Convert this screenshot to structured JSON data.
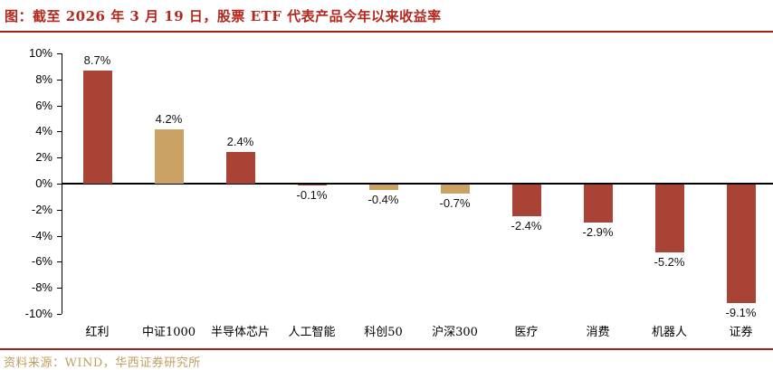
{
  "title": "图：截至 2026 年 3 月 19 日，股票 ETF 代表产品今年以来收益率",
  "source_note": "资料来源：WIND，华西证券研究所",
  "colors": {
    "title_red": "#B3271D",
    "rule_red": "#A3201A",
    "bar_red": "#A84335",
    "bar_tan": "#C9A264",
    "source_gold": "#BF9E5F",
    "axis_black": "#000000"
  },
  "chart_data": {
    "type": "bar",
    "title": "截至 2026 年 3 月 19 日，股票 ETF 代表产品今年以来收益率",
    "categories": [
      "红利",
      "中证1000",
      "半导体芯片",
      "人工智能",
      "科创50",
      "沪深300",
      "医疗",
      "消费",
      "机器人",
      "证券"
    ],
    "values": [
      8.7,
      4.2,
      2.4,
      -0.1,
      -0.4,
      -0.7,
      -2.4,
      -2.9,
      -5.2,
      -9.1
    ],
    "value_labels": [
      "8.7%",
      "4.2%",
      "2.4%",
      "-0.1%",
      "-0.4%",
      "-0.7%",
      "-2.4%",
      "-2.9%",
      "-5.2%",
      "-9.1%"
    ],
    "bar_colors": [
      "#A84335",
      "#C9A264",
      "#A84335",
      "#A84335",
      "#C9A264",
      "#C9A264",
      "#A84335",
      "#A84335",
      "#A84335",
      "#A84335"
    ],
    "xlabel": "",
    "ylabel": "",
    "ylim": [
      -10,
      10
    ],
    "ytick_values": [
      10,
      8,
      6,
      4,
      2,
      0,
      -2,
      -4,
      -6,
      -8,
      -10
    ],
    "ytick_labels": [
      "10%",
      "8%",
      "6%",
      "4%",
      "2%",
      "0%",
      "-2%",
      "-4%",
      "-6%",
      "-8%",
      "-10%"
    ],
    "grid": false,
    "legend": false,
    "value_label_position": "outside-end"
  }
}
